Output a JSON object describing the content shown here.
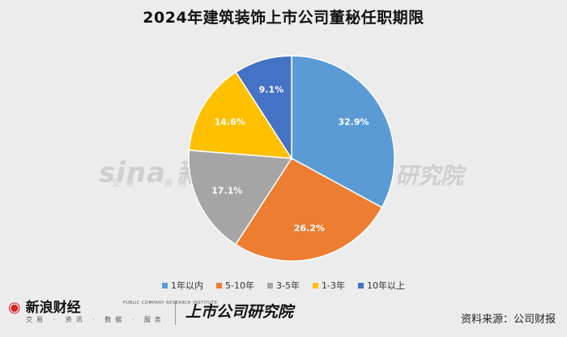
{
  "title": "2024年建筑装饰上市公司董秘任职期限",
  "chart_data": {
    "type": "pie",
    "title": "2024年建筑装饰上市公司董秘任职期限",
    "series": [
      {
        "name": "1年以内",
        "value": 32.9,
        "label": "32.9%",
        "color": "#5b9bd5"
      },
      {
        "name": "5-10年",
        "value": 26.2,
        "label": "26.2%",
        "color": "#ed7d31"
      },
      {
        "name": "3-5年",
        "value": 17.1,
        "label": "17.1%",
        "color": "#a5a5a5"
      },
      {
        "name": "1-3年",
        "value": 14.6,
        "label": "14.6%",
        "color": "#ffc000"
      },
      {
        "name": "10年以上",
        "value": 9.1,
        "label": "9.1%",
        "color": "#4472c4"
      }
    ],
    "legend_position": "bottom",
    "start_angle": "12 o'clock",
    "direction": "clockwise"
  },
  "watermark": {
    "left_text": "sina 新浪",
    "left_sub": "交易 · 资讯 ·",
    "right_text": "研究院"
  },
  "footer": {
    "sina_brand": "新浪财经",
    "sina_sub": "交易 · 资讯 · 数据 · 服务",
    "institute": "上市公司研究院",
    "institute_en": "PUBLIC COMPANY RESEARCH INSTITUTE",
    "source": "资料来源：公司财报"
  }
}
